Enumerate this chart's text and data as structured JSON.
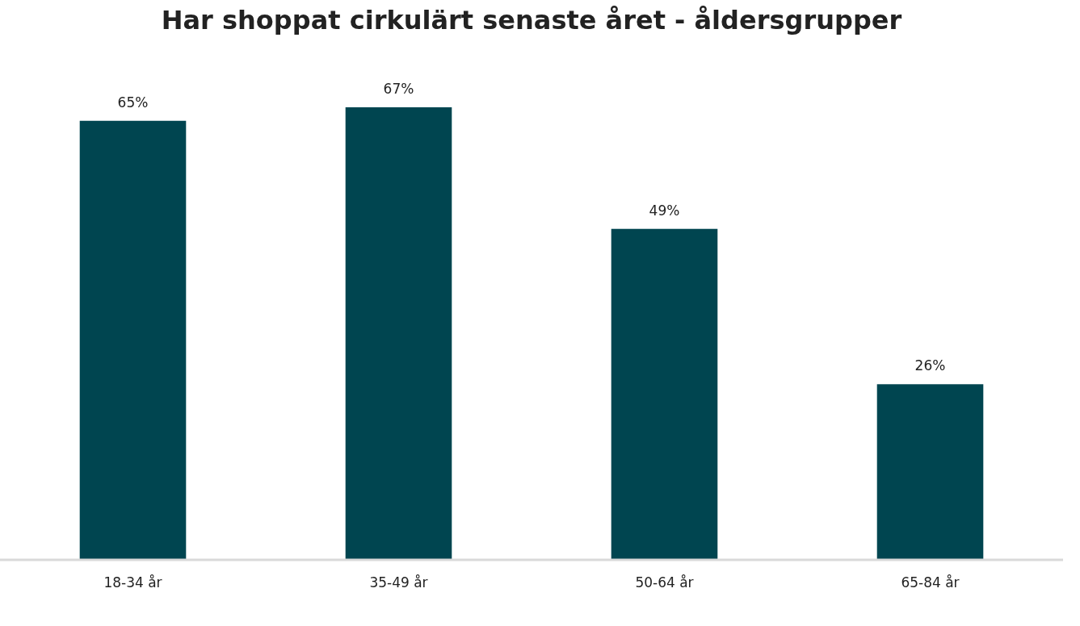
{
  "chart_data": {
    "type": "bar",
    "title": "Har shoppat cirkulärt senaste året - åldersgrupper",
    "categories": [
      "18-34 år",
      "35-49 år",
      "50-64 år",
      "65-84 år"
    ],
    "values": [
      65,
      67,
      49,
      26
    ],
    "value_labels": [
      "65%",
      "67%",
      "49%",
      "26%"
    ],
    "color": "#004550"
  }
}
